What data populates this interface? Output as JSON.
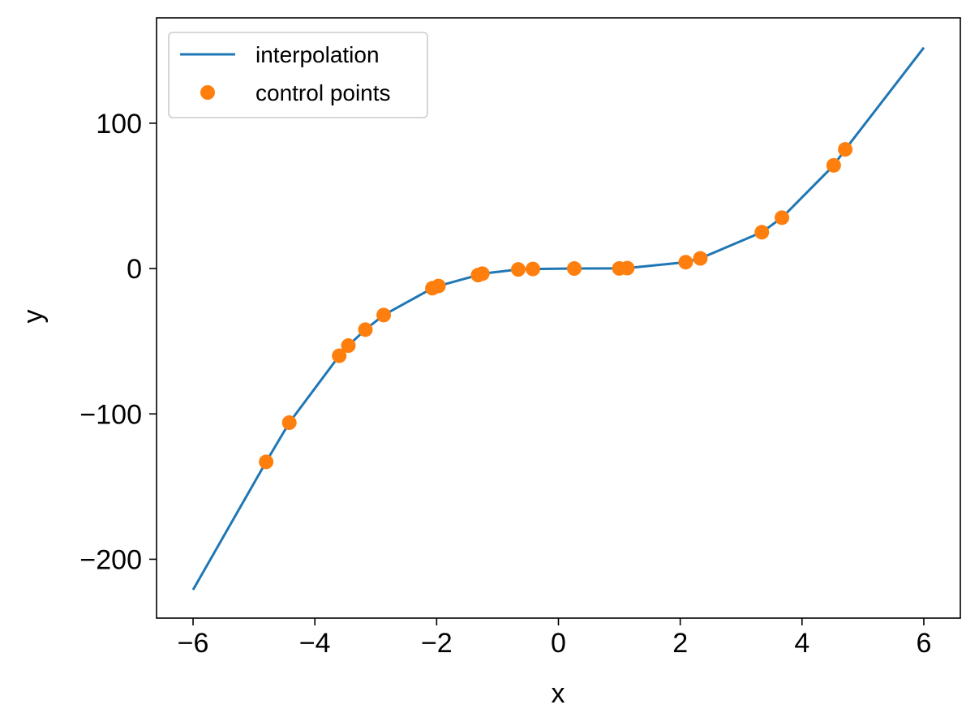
{
  "chart_data": {
    "type": "line",
    "title": "",
    "xlabel": "x",
    "ylabel": "y",
    "xlim": [
      -6.6,
      6.6
    ],
    "ylim": [
      -240.5,
      172.5
    ],
    "xticks": [
      -6,
      -4,
      -2,
      0,
      2,
      4,
      6
    ],
    "yticks": [
      -200,
      -100,
      0,
      100
    ],
    "xtick_labels": [
      "−6",
      "−4",
      "−2",
      "0",
      "2",
      "4",
      "6"
    ],
    "ytick_labels": [
      "−200",
      "−100",
      "0",
      "100"
    ],
    "grid": false,
    "legend_position": "top-left",
    "series": [
      {
        "name": "interpolation",
        "kind": "line",
        "color": "#1f77b4",
        "x": [
          -6.0,
          -4.8,
          -4.42,
          -3.6,
          -3.45,
          -3.17,
          -2.87,
          -2.07,
          -1.97,
          -1.32,
          -1.25,
          -0.66,
          -0.42,
          0.26,
          1.0,
          1.13,
          2.09,
          2.33,
          3.34,
          3.67,
          4.52,
          4.71,
          6.0
        ],
        "y": [
          -221,
          -133,
          -106,
          -60,
          -53,
          -42,
          -32,
          -13.5,
          -12,
          -4.5,
          -3.5,
          -0.6,
          -0.3,
          0.02,
          0.1,
          0.3,
          4.4,
          7,
          25,
          35,
          71,
          82,
          152
        ]
      },
      {
        "name": "control points",
        "kind": "scatter",
        "color": "#ff7f0e",
        "x": [
          -4.8,
          -4.42,
          -3.6,
          -3.45,
          -3.17,
          -2.87,
          -2.07,
          -1.97,
          -1.32,
          -1.25,
          -0.66,
          -0.42,
          0.26,
          1.0,
          1.13,
          2.09,
          2.33,
          3.34,
          3.67,
          4.52,
          4.71
        ],
        "y": [
          -133,
          -106,
          -60,
          -53,
          -42,
          -32,
          -13.5,
          -12,
          -4.5,
          -3.5,
          -0.6,
          -0.3,
          0.02,
          0.1,
          0.3,
          4.4,
          7,
          25,
          35,
          71,
          82
        ]
      }
    ]
  }
}
